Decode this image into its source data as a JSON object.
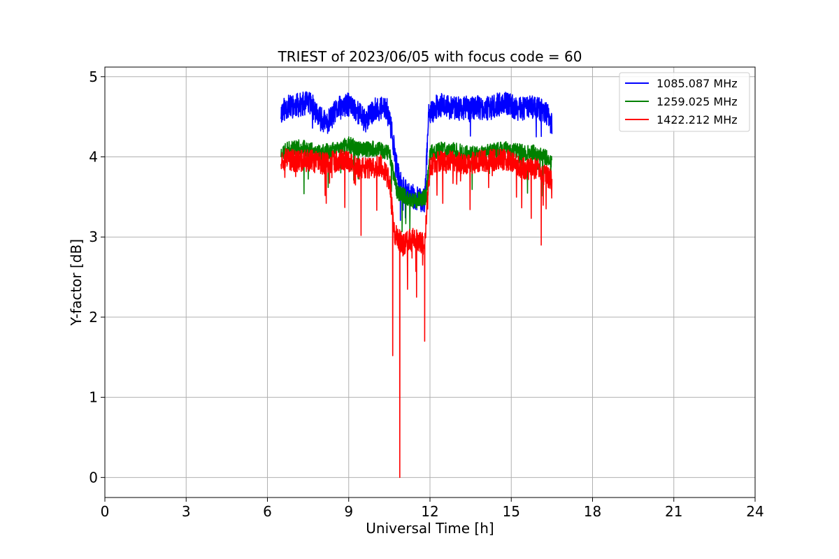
{
  "chart_data": {
    "type": "line",
    "title": "TRIEST of 2023/06/05 with focus code = 60",
    "xlabel": "Universal Time [h]",
    "ylabel": "Y-factor [dB]",
    "xlim": [
      0,
      24
    ],
    "ylim": [
      -0.25,
      5.12
    ],
    "xticks": [
      0,
      3,
      6,
      9,
      12,
      15,
      18,
      21,
      24
    ],
    "yticks": [
      0,
      1,
      2,
      3,
      4,
      5
    ],
    "grid": true,
    "legend_position": "top-right",
    "series": [
      {
        "name": "1085.087 MHz",
        "color": "#0000ff",
        "profile": [
          [
            6.5,
            4.55
          ],
          [
            6.7,
            4.62
          ],
          [
            7.2,
            4.65
          ],
          [
            7.6,
            4.68
          ],
          [
            7.85,
            4.5
          ],
          [
            8.2,
            4.42
          ],
          [
            8.6,
            4.6
          ],
          [
            9.0,
            4.65
          ],
          [
            9.3,
            4.58
          ],
          [
            9.6,
            4.45
          ],
          [
            10.0,
            4.6
          ],
          [
            10.4,
            4.6
          ],
          [
            10.6,
            4.3
          ],
          [
            10.8,
            3.8
          ],
          [
            11.0,
            3.6
          ],
          [
            11.4,
            3.5
          ],
          [
            11.8,
            3.45
          ],
          [
            11.95,
            4.5
          ],
          [
            12.3,
            4.65
          ],
          [
            13.0,
            4.6
          ],
          [
            13.6,
            4.62
          ],
          [
            14.2,
            4.6
          ],
          [
            14.7,
            4.68
          ],
          [
            15.2,
            4.6
          ],
          [
            15.8,
            4.62
          ],
          [
            16.3,
            4.55
          ],
          [
            16.5,
            4.4
          ]
        ],
        "noise": 0.15,
        "spike_prob": 0.02,
        "spike_depth": 0.35,
        "seed": 11
      },
      {
        "name": "1259.025 MHz",
        "color": "#008000",
        "profile": [
          [
            6.5,
            4.05
          ],
          [
            7.0,
            4.12
          ],
          [
            7.6,
            4.1
          ],
          [
            8.0,
            4.05
          ],
          [
            8.6,
            4.1
          ],
          [
            9.0,
            4.15
          ],
          [
            9.5,
            4.1
          ],
          [
            10.0,
            4.1
          ],
          [
            10.5,
            4.05
          ],
          [
            10.8,
            3.55
          ],
          [
            11.5,
            3.45
          ],
          [
            11.85,
            3.5
          ],
          [
            12.0,
            4.05
          ],
          [
            12.6,
            4.1
          ],
          [
            13.3,
            4.05
          ],
          [
            14.0,
            4.05
          ],
          [
            14.8,
            4.1
          ],
          [
            15.5,
            4.05
          ],
          [
            16.0,
            4.05
          ],
          [
            16.5,
            3.95
          ]
        ],
        "noise": 0.1,
        "spike_prob": 0.015,
        "spike_depth": 0.55,
        "seed": 23
      },
      {
        "name": "1422.212 MHz",
        "color": "#ff0000",
        "profile": [
          [
            6.5,
            3.98
          ],
          [
            7.0,
            3.95
          ],
          [
            7.6,
            3.95
          ],
          [
            8.0,
            3.92
          ],
          [
            8.6,
            3.95
          ],
          [
            9.0,
            3.95
          ],
          [
            9.4,
            3.85
          ],
          [
            9.8,
            3.85
          ],
          [
            10.2,
            3.9
          ],
          [
            10.5,
            3.7
          ],
          [
            10.7,
            3.05
          ],
          [
            11.0,
            2.9
          ],
          [
            11.4,
            3.0
          ],
          [
            11.8,
            2.9
          ],
          [
            12.0,
            3.9
          ],
          [
            12.6,
            3.95
          ],
          [
            13.3,
            3.92
          ],
          [
            14.0,
            3.95
          ],
          [
            14.8,
            3.97
          ],
          [
            15.5,
            3.85
          ],
          [
            16.0,
            3.85
          ],
          [
            16.5,
            3.7
          ]
        ],
        "noise": 0.14,
        "spike_prob": 0.03,
        "spike_depth": 0.6,
        "seed": 37,
        "deep_spikes": [
          [
            10.62,
            1.52
          ],
          [
            10.88,
            0.0
          ],
          [
            11.8,
            1.7
          ],
          [
            11.5,
            2.25
          ],
          [
            9.45,
            3.02
          ],
          [
            16.1,
            2.9
          ]
        ]
      }
    ]
  }
}
